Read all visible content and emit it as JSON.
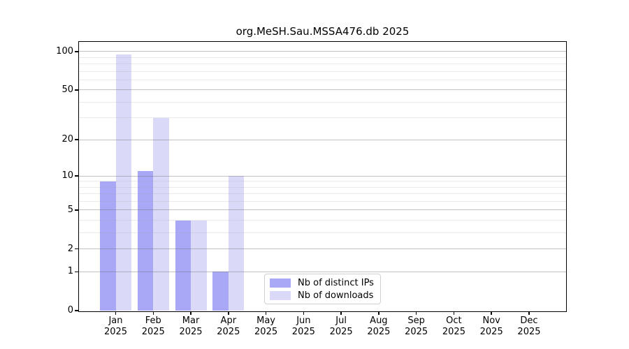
{
  "chart_data": {
    "type": "bar",
    "title": "org.MeSH.Sau.MSSA476.db 2025",
    "categories": [
      "Jan",
      "Feb",
      "Mar",
      "Apr",
      "May",
      "Jun",
      "Jul",
      "Aug",
      "Sep",
      "Oct",
      "Nov",
      "Dec"
    ],
    "category_year": "2025",
    "series": [
      {
        "name": "Nb of distinct IPs",
        "color": "#a8a8f7",
        "values": [
          9,
          11,
          4,
          1,
          0,
          0,
          0,
          0,
          0,
          0,
          0,
          0
        ]
      },
      {
        "name": "Nb of downloads",
        "color": "#dadaf8",
        "values": [
          95,
          30,
          4,
          10,
          0,
          0,
          0,
          0,
          0,
          0,
          0,
          0
        ]
      }
    ],
    "xlabel": "",
    "ylabel": "",
    "yticks": [
      0,
      1,
      2,
      5,
      10,
      20,
      50,
      100
    ],
    "minor_gridlines": [
      3,
      4,
      6,
      7,
      8,
      9,
      30,
      40,
      60,
      70,
      80,
      90
    ],
    "scale": "log10(value+1)",
    "ylim": [
      0,
      119
    ],
    "grid": true,
    "legend_position": "inside-bottom",
    "legend_entries": [
      "Nb of distinct IPs",
      "Nb of downloads"
    ]
  },
  "colors": {
    "bar_distinct_ips": "#a8a8f7",
    "bar_downloads": "#dadaf8",
    "major_grid": "#c4c4c4",
    "minor_grid": "#eaeaea",
    "axis": "#000000",
    "background": "#ffffff",
    "text": "#000000"
  }
}
